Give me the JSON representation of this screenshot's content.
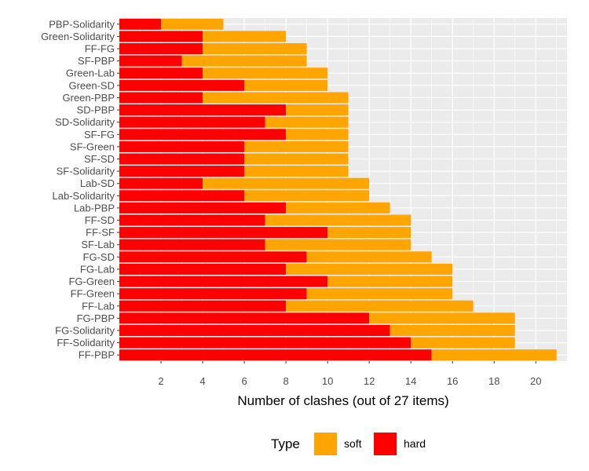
{
  "chart_data": {
    "type": "bar",
    "orientation": "horizontal",
    "stacked": true,
    "xlabel": "Number of clashes (out of 27 items)",
    "ylabel": "",
    "xlim": [
      0,
      21.5
    ],
    "x_ticks": [
      2,
      4,
      6,
      8,
      10,
      12,
      14,
      16,
      18,
      20
    ],
    "grid": true,
    "legend_position": "bottom",
    "legend_title": "Type",
    "categories": [
      "PBP-Solidarity",
      "Green-Solidarity",
      "FF-FG",
      "SF-PBP",
      "Green-Lab",
      "Green-SD",
      "Green-PBP",
      "SD-PBP",
      "SD-Solidarity",
      "SF-FG",
      "SF-Green",
      "SF-SD",
      "SF-Solidarity",
      "Lab-SD",
      "Lab-Solidarity",
      "Lab-PBP",
      "FF-SD",
      "FF-SF",
      "SF-Lab",
      "FG-SD",
      "FG-Lab",
      "FG-Green",
      "FF-Green",
      "FF-Lab",
      "FG-PBP",
      "FG-Solidarity",
      "FF-Solidarity",
      "FF-PBP"
    ],
    "series": [
      {
        "name": "hard",
        "color": "#ff0000",
        "values": [
          2,
          4,
          4,
          3,
          4,
          6,
          4,
          8,
          7,
          8,
          6,
          6,
          6,
          4,
          6,
          8,
          7,
          10,
          7,
          9,
          8,
          10,
          9,
          8,
          12,
          13,
          14,
          15
        ]
      },
      {
        "name": "soft",
        "color": "#ffa500",
        "values": [
          3,
          4,
          5,
          6,
          6,
          4,
          7,
          3,
          4,
          3,
          5,
          5,
          5,
          8,
          6,
          5,
          7,
          4,
          7,
          6,
          8,
          6,
          7,
          9,
          7,
          6,
          5,
          6
        ]
      }
    ],
    "legend_order": [
      "soft",
      "hard"
    ],
    "panel_background": "#ebebeb",
    "grid_color": "#ffffff"
  }
}
